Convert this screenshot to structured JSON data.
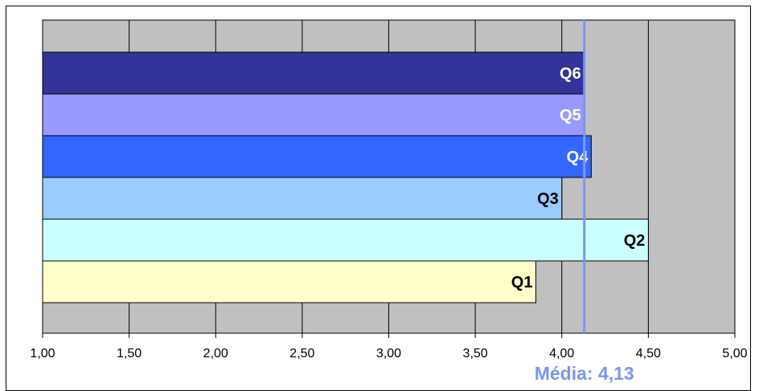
{
  "chart_data": {
    "type": "bar",
    "orientation": "horizontal",
    "categories": [
      "Q1",
      "Q2",
      "Q3",
      "Q4",
      "Q5",
      "Q6"
    ],
    "values": [
      3.85,
      4.5,
      4.0,
      4.17,
      4.13,
      4.13
    ],
    "bar_colors": [
      "#FFFFCC",
      "#CCFFFF",
      "#99CCFF",
      "#3366FF",
      "#9999FF",
      "#333399"
    ],
    "label_colors": [
      "#000000",
      "#000000",
      "#000000",
      "#FFFFFF",
      "#FFFFFF",
      "#FFFFFF"
    ],
    "xlim": [
      1.0,
      5.0
    ],
    "x_ticks": [
      1.0,
      1.5,
      2.0,
      2.5,
      3.0,
      3.5,
      4.0,
      4.5,
      5.0
    ],
    "x_tick_labels": [
      "1,00",
      "1,50",
      "2,00",
      "2,50",
      "3,00",
      "3,50",
      "4,00",
      "4,50",
      "5,00"
    ],
    "mean": {
      "value": 4.13,
      "label": "Média: 4,13",
      "color": "#7A96F0"
    },
    "plot_background": "#C0C0C0",
    "grid": "vertical",
    "title": "",
    "xlabel": "",
    "ylabel": ""
  }
}
